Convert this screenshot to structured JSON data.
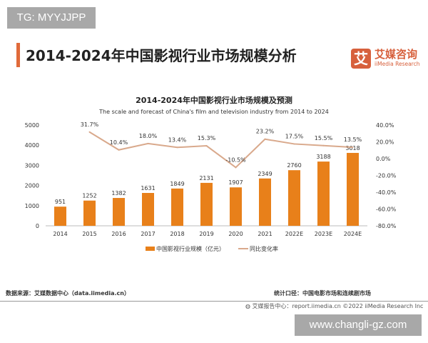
{
  "watermarks": [
    "TG: MYYJJPP",
    "www.changli-gz.com"
  ],
  "header": {
    "title": "2014-2024年中国影视行业市场规模分析",
    "logo_cn": "艾媒咨询",
    "logo_en": "iiMedia Research",
    "logo_mark": "艾"
  },
  "chart_data": {
    "type": "bar+line",
    "title": "2014-2024年中国影视行业市场规模及预测",
    "subtitle": "The scale and forecast of China's film and television industry from 2014 to 2024",
    "categories": [
      "2014",
      "2015",
      "2016",
      "2017",
      "2018",
      "2019",
      "2020",
      "2021",
      "2022E",
      "2023E",
      "2024E"
    ],
    "series": [
      {
        "name": "中国影视行业规模（亿元）",
        "type": "bar",
        "axis": "left",
        "color": "#e8801a",
        "values": [
          951,
          1252,
          1382,
          1631,
          1849,
          2131,
          1907,
          2349,
          2760,
          3188,
          3618
        ],
        "labels": [
          "951",
          "1252",
          "1382",
          "1631",
          "1849",
          "2131",
          "1907",
          "2349",
          "2760",
          "3188",
          "3618"
        ]
      },
      {
        "name": "同比变化率",
        "type": "line",
        "axis": "right",
        "color": "#d9a98c",
        "values": [
          null,
          31.7,
          10.4,
          18.0,
          13.4,
          15.3,
          -10.5,
          23.2,
          17.5,
          15.5,
          13.5
        ],
        "labels": [
          "",
          "31.7%",
          "10.4%",
          "18.0%",
          "13.4%",
          "15.3%",
          "-10.5%",
          "23.2%",
          "17.5%",
          "15.5%",
          "13.5%"
        ]
      }
    ],
    "ylim_left": [
      0,
      5000
    ],
    "yticks_left": [
      "0",
      "1000",
      "2000",
      "3000",
      "4000",
      "5000"
    ],
    "ylim_right": [
      -80,
      40
    ],
    "yticks_right": [
      "-80.0%",
      "-60.0%",
      "-40.0%",
      "-20.0%",
      "0.0%",
      "20.0%",
      "40.0%"
    ],
    "legend": "bottom",
    "grid": false
  },
  "footer": {
    "source": "数据来源：艾媒数据中心（data.iimedia.cn）",
    "scope": "统计口径：中国电影市场和连续剧市场",
    "credit": "艾媒报告中心：report.iimedia.cn   ©2022  iiMedia Research  Inc"
  }
}
